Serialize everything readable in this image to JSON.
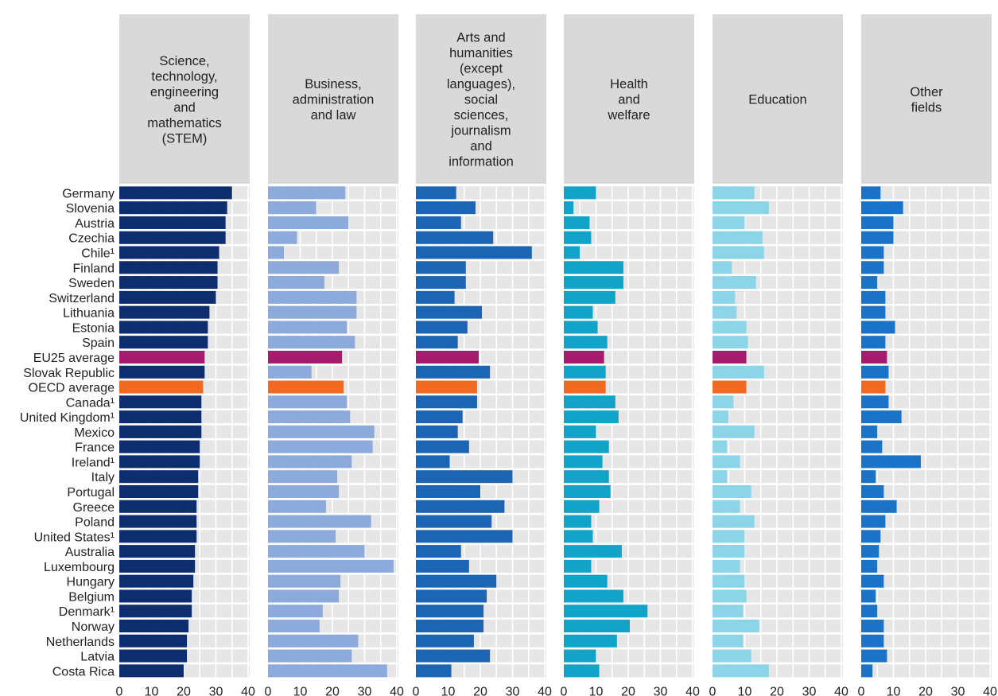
{
  "chart_data": {
    "type": "bar",
    "orientation": "horizontal",
    "layout": "small-multiples",
    "xlim": [
      0,
      40
    ],
    "xticks": [
      0,
      10,
      20,
      30,
      40
    ],
    "grid": true,
    "colors": {
      "header_bg": "#d9d9d9",
      "plot_bg": "#e6e6e6",
      "eu_highlight": "#a51c6e",
      "oecd_highlight": "#f26a21"
    },
    "categories": [
      "Germany",
      "Slovenia",
      "Austria",
      "Czechia",
      "Chile¹",
      "Finland",
      "Sweden",
      "Switzerland",
      "Lithuania",
      "Estonia",
      "Spain",
      "EU25 average",
      "Slovak Republic",
      "OECD average",
      "Canada¹",
      "United Kingdom¹",
      "Mexico",
      "France",
      "Ireland¹",
      "Italy",
      "Portugal",
      "Greece",
      "Poland",
      "United States¹",
      "Australia",
      "Luxembourg",
      "Hungary",
      "Belgium",
      "Denmark¹",
      "Norway",
      "Netherlands",
      "Latvia",
      "Costa Rica"
    ],
    "highlight": {
      "EU25 average": "eu_highlight",
      "OECD average": "oecd_highlight"
    },
    "series": [
      {
        "name": "Science,\ntechnology,\nengineering\nand\nmathematics\n(STEM)",
        "color": "#0d2d6e",
        "values": [
          35,
          33.5,
          33,
          33,
          31,
          30.5,
          30.5,
          30,
          28,
          27.5,
          27.5,
          26.5,
          26.5,
          26,
          25.5,
          25.5,
          25.5,
          25,
          25,
          24.5,
          24.5,
          24,
          24,
          24,
          23.5,
          23.5,
          23,
          22.5,
          22.5,
          21.5,
          21,
          21,
          20
        ]
      },
      {
        "name": "Business,\nadministration\nand law",
        "color": "#8cabdc",
        "values": [
          24,
          15,
          25,
          9,
          5,
          22,
          17.5,
          27.5,
          27.5,
          24.5,
          27,
          23,
          13.5,
          23.5,
          24.5,
          25.5,
          33,
          32.5,
          26,
          21.5,
          22,
          18,
          32,
          21,
          30,
          39,
          22.5,
          22,
          17,
          16,
          28,
          26,
          37
        ]
      },
      {
        "name": "Arts and\nhumanities\n(except\nlanguages),\nsocial\nsciences,\njournalism\nand\ninformation",
        "color": "#1c64b4",
        "values": [
          12.5,
          18.5,
          14,
          24,
          36,
          15.5,
          15.5,
          12,
          20.5,
          16,
          13,
          19.5,
          23,
          19,
          19,
          14.5,
          13,
          16.5,
          10.5,
          30,
          20,
          27.5,
          23.5,
          30,
          14,
          16.5,
          25,
          22,
          21,
          21,
          18,
          23,
          11
        ]
      },
      {
        "name": "Health\nand\nwelfare",
        "color": "#12a3c8",
        "values": [
          10,
          3,
          8,
          8.5,
          5,
          18.5,
          18.5,
          16,
          9,
          10.5,
          13.5,
          12.5,
          13,
          13,
          16,
          17,
          10,
          14,
          12,
          14,
          14.5,
          11,
          8.5,
          9,
          18,
          8.5,
          13.5,
          18.5,
          26,
          20.5,
          16.5,
          10,
          11
        ]
      },
      {
        "name": "Education",
        "color": "#8cd4e8",
        "values": [
          13,
          17.5,
          10,
          15.5,
          16,
          6,
          13.5,
          7,
          7.5,
          10.5,
          11,
          10.5,
          16,
          10.5,
          6.5,
          5,
          13,
          4.5,
          8.5,
          4.5,
          12,
          8.5,
          13,
          10,
          10,
          8.5,
          10,
          10.5,
          9.5,
          14.5,
          9.5,
          12,
          17.5
        ]
      },
      {
        "name": "Other\nfields",
        "color": "#1a73c6",
        "values": [
          6,
          13,
          10,
          10,
          7,
          7,
          5,
          7.5,
          7.5,
          10.5,
          7.5,
          8,
          8.5,
          7.5,
          8.5,
          12.5,
          5,
          6.5,
          18.5,
          4.5,
          7,
          11,
          7.5,
          6,
          5.5,
          5,
          7,
          4.5,
          5,
          7,
          7,
          8,
          3.5
        ]
      }
    ]
  }
}
